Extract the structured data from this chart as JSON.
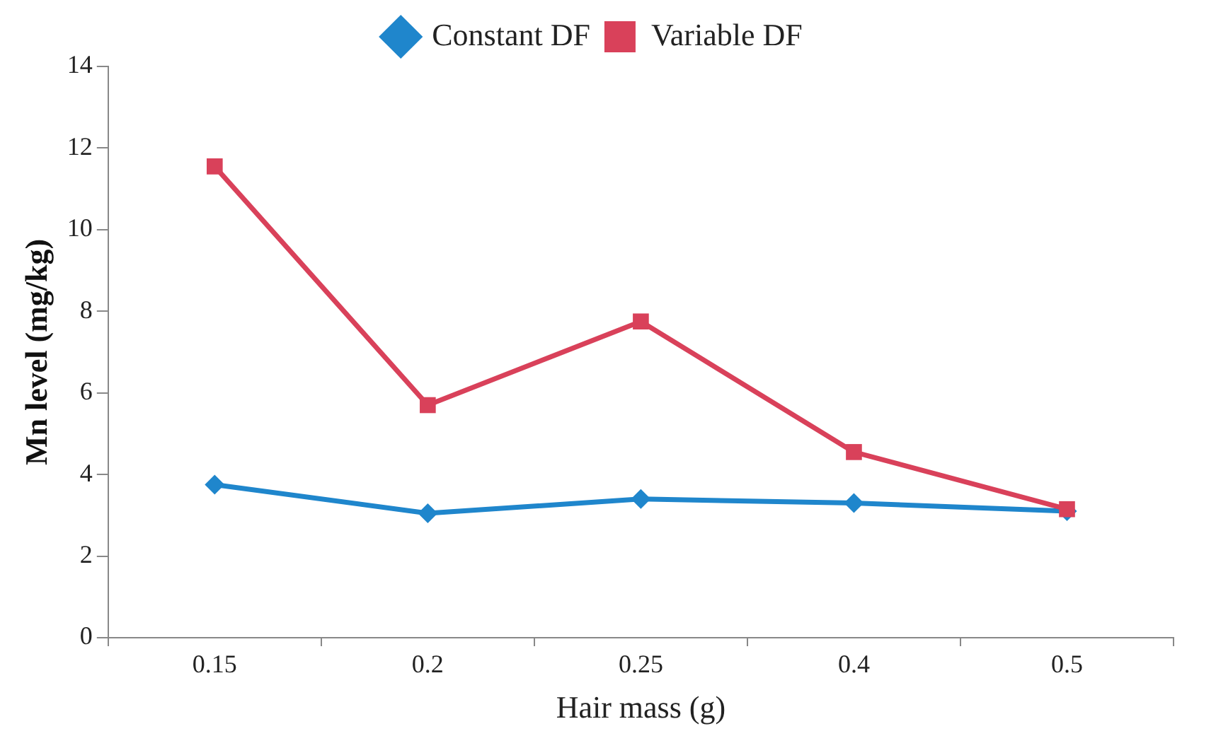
{
  "chart_data": {
    "type": "line",
    "xlabel": "Hair mass (g)",
    "ylabel": "Mn level (mg/kg)",
    "categories": [
      "0.15",
      "0.2",
      "0.25",
      "0.4",
      "0.5"
    ],
    "series": [
      {
        "name": "Constant DF",
        "color": "#1f86cc",
        "marker": "diamond",
        "values": [
          3.75,
          3.05,
          3.4,
          3.3,
          3.1
        ]
      },
      {
        "name": "Variable DF",
        "color": "#d9415a",
        "marker": "square",
        "values": [
          11.55,
          5.7,
          7.75,
          4.55,
          3.15
        ]
      }
    ],
    "ylim": [
      0,
      14
    ],
    "yticks": [
      0,
      2,
      4,
      6,
      8,
      10,
      12,
      14
    ],
    "grid": false,
    "legend": "top",
    "line_style": "solid"
  }
}
